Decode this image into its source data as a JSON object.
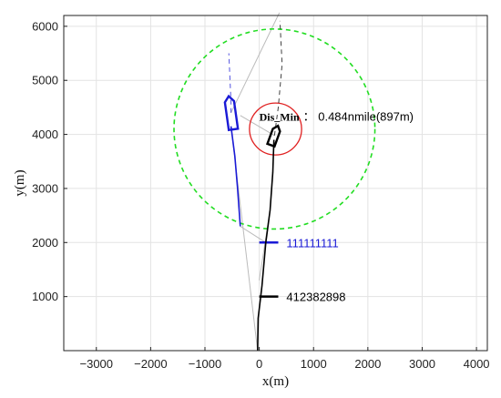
{
  "chart_data": {
    "type": "scatter",
    "xlabel": "x(m)",
    "ylabel": "y(m)",
    "xlim": [
      -3600,
      4200
    ],
    "ylim": [
      0,
      6200
    ],
    "xticks": [
      -3000,
      -2000,
      -1000,
      0,
      1000,
      2000,
      3000,
      4000
    ],
    "yticks": [
      1000,
      2000,
      3000,
      4000,
      5000,
      6000
    ],
    "xtick_labels": [
      "−3000",
      "−2000",
      "−1000",
      "0",
      "1000",
      "2000",
      "3000",
      "4000"
    ],
    "ytick_labels": [
      "1000",
      "2000",
      "3000",
      "4000",
      "5000",
      "6000"
    ],
    "grid": true,
    "colors": {
      "blue": "#1a1ad6",
      "black": "#000000",
      "green": "#22dd22",
      "red": "#e02020",
      "gray": "#bbbbbb",
      "grid": "#e3e3e3"
    },
    "series": [
      {
        "name": "111111111",
        "color": "#1a1ad6",
        "track": [
          [
            -350,
            2300
          ],
          [
            -400,
            3000
          ],
          [
            -450,
            3600
          ],
          [
            -520,
            4150
          ]
        ],
        "future_dashed": [
          [
            -520,
            4600
          ],
          [
            -560,
            5500
          ]
        ],
        "tick_mark": {
          "x": [
            0,
            350
          ],
          "y": 2000
        },
        "label_pos": [
          500,
          2000
        ],
        "ship": {
          "cx": -520,
          "cy": 4400,
          "length": 620,
          "width": 170,
          "heading_deg": -8
        }
      },
      {
        "name": "412382898",
        "color": "#000000",
        "track": [
          [
            -30,
            0
          ],
          [
            -20,
            600
          ],
          [
            50,
            1200
          ],
          [
            120,
            2000
          ],
          [
            200,
            2600
          ],
          [
            250,
            3300
          ],
          [
            270,
            3900
          ]
        ],
        "future_dashed": [
          [
            350,
            4500
          ],
          [
            420,
            5300
          ],
          [
            380,
            6100
          ]
        ],
        "tick_mark": {
          "x": [
            0,
            350
          ],
          "y": 1000
        },
        "label_pos": [
          500,
          1000
        ],
        "ship": {
          "cx": 280,
          "cy": 3980,
          "length": 380,
          "width": 140,
          "heading_deg": 20
        }
      }
    ],
    "gray_lines": [
      [
        [
          -30,
          0
        ],
        [
          -520,
          4150
        ]
      ],
      [
        [
          280,
          3980
        ],
        [
          -350,
          4350
        ]
      ],
      [
        [
          -520,
          4400
        ],
        [
          370,
          6250
        ]
      ],
      [
        [
          -350,
          2300
        ],
        [
          120,
          2000
        ]
      ],
      [
        [
          0,
          1300
        ],
        [
          200,
          2600
        ]
      ]
    ],
    "safety_circle": {
      "cx": 280,
      "cy": 4100,
      "r": 1850,
      "color": "#22dd22"
    },
    "min_circle": {
      "cx": 300,
      "cy": 4100,
      "r": 480,
      "color": "#e02020"
    },
    "annotation": {
      "part1": "Dis_Min",
      "part2": "： 0.484nmile(897m)",
      "pos": [
        0,
        4250
      ]
    }
  }
}
